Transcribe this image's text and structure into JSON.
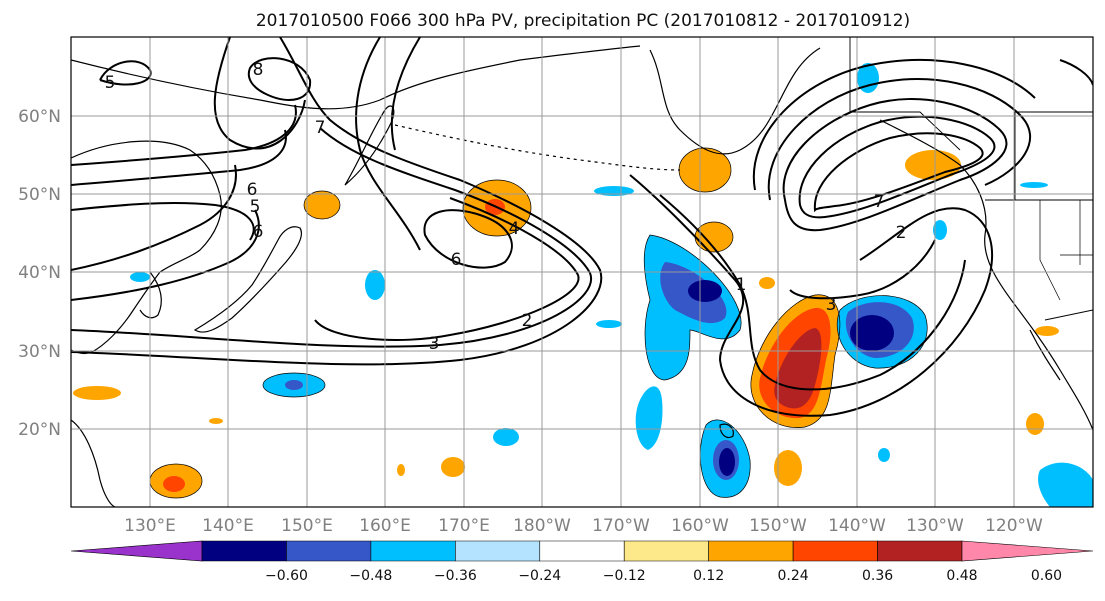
{
  "title": "2017010500 F066 300 hPa PV, precipitation PC (2017010812 - 2017010912)",
  "latitude_labels": [
    "60°N",
    "50°N",
    "40°N",
    "30°N",
    "20°N"
  ],
  "longitude_labels": [
    "130°E",
    "140°E",
    "150°E",
    "160°E",
    "170°E",
    "180°W",
    "170°W",
    "160°W",
    "150°W",
    "140°W",
    "130°W",
    "120°W"
  ],
  "pv_contour_labels": [
    "5",
    "8",
    "7",
    "6",
    "5",
    "6",
    "4",
    "6",
    "3",
    "2",
    "1",
    "3",
    "7",
    "2"
  ],
  "colorbar": {
    "tick_labels": [
      "−0.60",
      "−0.48",
      "−0.36",
      "−0.24",
      "−0.12",
      "0.12",
      "0.24",
      "0.36",
      "0.48",
      "0.60"
    ],
    "colors": [
      "#9933cc",
      "#000080",
      "#3557c8",
      "#00bfff",
      "#b3e3ff",
      "#ffffff",
      "#fde98a",
      "#ffa500",
      "#ff4500",
      "#b22222",
      "#ff88aa"
    ]
  }
}
